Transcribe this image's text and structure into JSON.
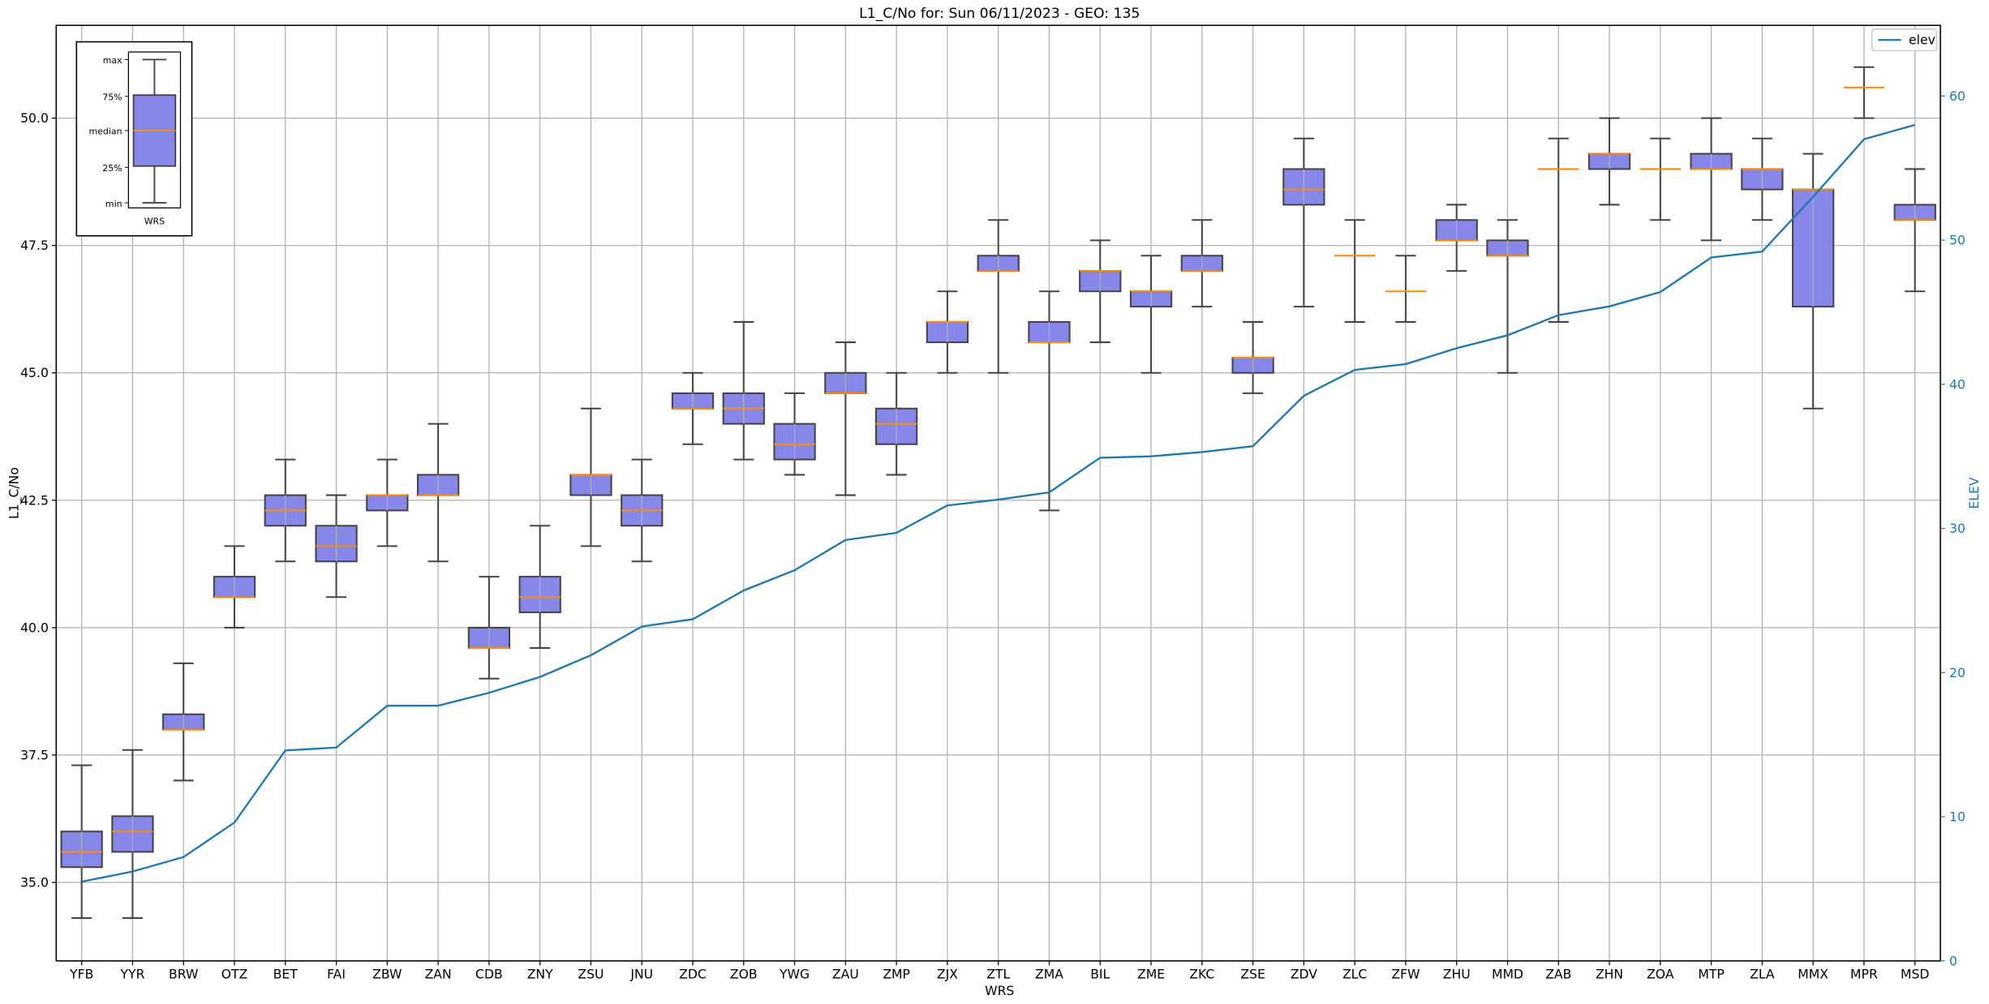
{
  "chart_data": {
    "type": "box",
    "title": "L1_C/No for: Sun 06/11/2023 - GEO: 135",
    "xlabel": "WRS",
    "ylabel": "L1_C/No",
    "y2label": "ELEV",
    "ylim": [
      33.46,
      51.82
    ],
    "y2lim": [
      0,
      64.9
    ],
    "yticks": [
      "35.0",
      "37.5",
      "40.0",
      "42.5",
      "45.0",
      "47.5",
      "50.0"
    ],
    "y2ticks": [
      "0",
      "10",
      "20",
      "30",
      "40",
      "50",
      "60"
    ],
    "grid": true,
    "legend": {
      "position": "top-right",
      "entries": [
        "elev"
      ]
    },
    "colors": {
      "box_fill": "#8787ea",
      "box_edge": "#444444",
      "median": "#ff8c00",
      "elev": "#1f77b4"
    },
    "categories": [
      "YFB",
      "YYR",
      "BRW",
      "OTZ",
      "BET",
      "FAI",
      "ZBW",
      "ZAN",
      "CDB",
      "ZNY",
      "ZSU",
      "JNU",
      "ZDC",
      "ZOB",
      "YWG",
      "ZAU",
      "ZMP",
      "ZJX",
      "ZTL",
      "ZMA",
      "BIL",
      "ZME",
      "ZKC",
      "ZSE",
      "ZDV",
      "ZLC",
      "ZFW",
      "ZHU",
      "MMD",
      "ZAB",
      "ZHN",
      "ZOA",
      "MTP",
      "ZLA",
      "MMX",
      "MPR",
      "MSD"
    ],
    "boxes": [
      [
        34.3,
        35.3,
        35.6,
        36.0,
        37.3
      ],
      [
        34.3,
        35.6,
        36.0,
        36.3,
        37.6
      ],
      [
        37.0,
        38.0,
        38.0,
        38.3,
        39.3
      ],
      [
        40.0,
        40.6,
        40.6,
        41.0,
        41.6
      ],
      [
        41.3,
        42.0,
        42.3,
        42.6,
        43.3
      ],
      [
        40.6,
        41.3,
        41.6,
        42.0,
        42.6
      ],
      [
        41.6,
        42.3,
        42.6,
        42.6,
        43.3
      ],
      [
        41.3,
        42.6,
        42.6,
        43.0,
        44.0
      ],
      [
        39.0,
        39.6,
        39.6,
        40.0,
        41.0
      ],
      [
        39.6,
        40.3,
        40.6,
        41.0,
        42.0
      ],
      [
        41.6,
        42.6,
        43.0,
        43.0,
        44.3
      ],
      [
        41.3,
        42.0,
        42.3,
        42.6,
        43.3
      ],
      [
        43.6,
        44.3,
        44.3,
        44.6,
        45.0
      ],
      [
        43.3,
        44.0,
        44.3,
        44.6,
        46.0
      ],
      [
        43.0,
        43.3,
        43.6,
        44.0,
        44.6
      ],
      [
        42.6,
        44.6,
        44.6,
        45.0,
        45.6
      ],
      [
        43.0,
        43.6,
        44.0,
        44.3,
        45.0
      ],
      [
        45.0,
        45.6,
        46.0,
        46.0,
        46.6
      ],
      [
        45.0,
        47.0,
        47.0,
        47.3,
        48.0
      ],
      [
        42.3,
        45.6,
        45.6,
        46.0,
        46.6
      ],
      [
        45.6,
        46.6,
        47.0,
        47.0,
        47.6
      ],
      [
        45.0,
        46.3,
        46.6,
        46.6,
        47.3
      ],
      [
        46.3,
        47.0,
        47.0,
        47.3,
        48.0
      ],
      [
        44.6,
        45.0,
        45.3,
        45.3,
        46.0
      ],
      [
        46.3,
        48.3,
        48.6,
        49.0,
        49.6
      ],
      [
        46.0,
        47.3,
        47.3,
        47.3,
        48.0
      ],
      [
        46.0,
        46.6,
        46.6,
        46.6,
        47.3
      ],
      [
        47.0,
        47.6,
        47.6,
        48.0,
        48.3
      ],
      [
        45.0,
        47.3,
        47.3,
        47.6,
        48.0
      ],
      [
        46.0,
        49.0,
        49.0,
        49.0,
        49.6
      ],
      [
        48.3,
        49.0,
        49.3,
        49.3,
        50.0
      ],
      [
        48.0,
        49.0,
        49.0,
        49.0,
        49.6
      ],
      [
        47.6,
        49.0,
        49.0,
        49.3,
        50.0
      ],
      [
        48.0,
        48.6,
        49.0,
        49.0,
        49.6
      ],
      [
        44.3,
        46.3,
        48.6,
        48.6,
        49.3
      ],
      [
        50.0,
        50.6,
        50.6,
        50.6,
        51.0
      ],
      [
        46.6,
        48.0,
        48.0,
        48.3,
        49.0
      ]
    ],
    "elev": [
      5.5,
      6.2,
      7.2,
      9.6,
      14.6,
      14.8,
      17.7,
      17.7,
      18.6,
      19.7,
      21.2,
      23.2,
      23.7,
      25.7,
      27.1,
      29.2,
      29.7,
      31.6,
      32.0,
      32.5,
      34.9,
      35.0,
      35.3,
      35.7,
      39.2,
      41.0,
      41.4,
      42.5,
      43.4,
      44.8,
      45.4,
      46.4,
      48.8,
      49.2,
      53.0,
      57.0,
      58.0
    ],
    "inset_key": {
      "labels": [
        "max",
        "75%",
        "median",
        "25%",
        "min"
      ],
      "xlabel": "WRS"
    }
  }
}
